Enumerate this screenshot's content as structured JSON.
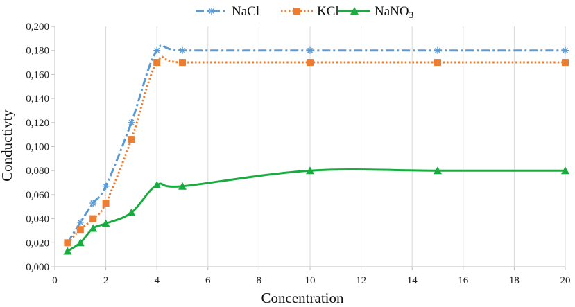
{
  "chart_data": {
    "type": "line",
    "xlabel": "Concentration",
    "ylabel": "Conductivty",
    "xlim": [
      0,
      20
    ],
    "ylim": [
      0,
      0.2
    ],
    "x_ticks": [
      0,
      2,
      4,
      6,
      8,
      10,
      12,
      14,
      16,
      18,
      20
    ],
    "y_ticks": [
      0,
      0.02,
      0.04,
      0.06,
      0.08,
      0.1,
      0.12,
      0.14,
      0.16,
      0.18,
      0.2
    ],
    "y_tick_labels": [
      "0,000",
      "0,020",
      "0,040",
      "0,060",
      "0,080",
      "0,100",
      "0,120",
      "0,140",
      "0,160",
      "0,180",
      "0,200"
    ],
    "grid": "vertical",
    "legend_position": "top",
    "series": [
      {
        "name": "NaCl",
        "color": "#5b9bd5",
        "marker": "asterisk",
        "line_style": "dash-dot",
        "x": [
          0.5,
          1,
          1.5,
          2,
          3,
          4,
          5,
          10,
          15,
          20
        ],
        "y": [
          0.02,
          0.037,
          0.053,
          0.067,
          0.12,
          0.18,
          0.18,
          0.18,
          0.18,
          0.18
        ]
      },
      {
        "name": "KCl",
        "color": "#ed7d31",
        "marker": "square",
        "line_style": "dotted",
        "x": [
          0.5,
          1,
          1.5,
          2,
          3,
          4,
          5,
          10,
          15,
          20
        ],
        "y": [
          0.02,
          0.031,
          0.04,
          0.053,
          0.106,
          0.17,
          0.17,
          0.17,
          0.17,
          0.17
        ]
      },
      {
        "name": "NaNO",
        "name_subscript": "3",
        "color": "#1aab40",
        "marker": "triangle",
        "line_style": "solid",
        "x": [
          0.5,
          1,
          1.5,
          2,
          3,
          4,
          5,
          10,
          15,
          20
        ],
        "y": [
          0.013,
          0.02,
          0.032,
          0.036,
          0.045,
          0.068,
          0.067,
          0.08,
          0.08,
          0.08
        ]
      }
    ]
  }
}
